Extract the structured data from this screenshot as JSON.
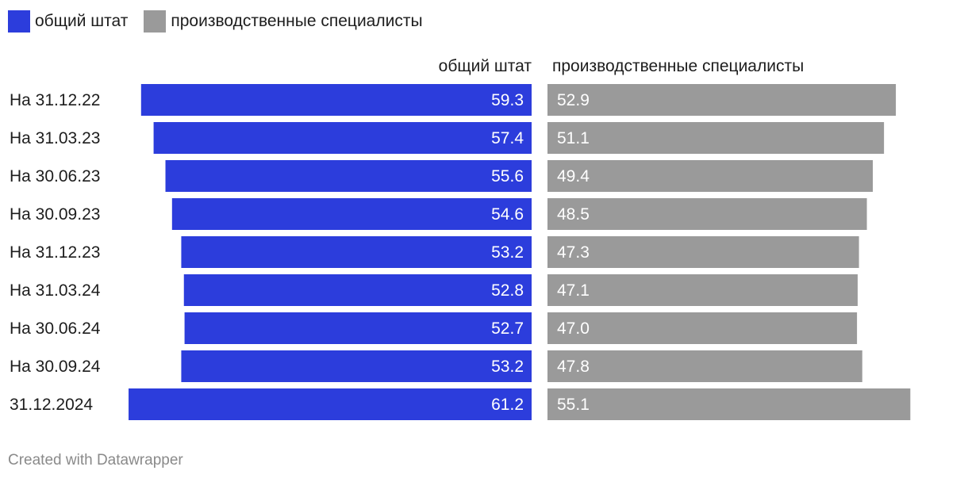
{
  "legend": [
    {
      "label": "общий штат",
      "color": "#2c3ddc"
    },
    {
      "label": "производственные специалисты",
      "color": "#9a9a9a"
    }
  ],
  "chart_data": {
    "type": "bar",
    "orientation": "horizontal",
    "layout": "split-columns",
    "categories": [
      "На 31.12.22",
      "На 31.03.23",
      "На 30.06.23",
      "На 30.09.23",
      "На 31.12.23",
      "На 31.03.24",
      "На 30.06.24",
      "На 30.09.24",
      "31.12.2024"
    ],
    "series": [
      {
        "name": "общий штат",
        "color": "#2c3ddc",
        "values": [
          59.3,
          57.4,
          55.6,
          54.6,
          53.2,
          52.8,
          52.7,
          53.2,
          61.2
        ]
      },
      {
        "name": "производственные специалисты",
        "color": "#9a9a9a",
        "values": [
          52.9,
          51.1,
          49.4,
          48.5,
          47.3,
          47.1,
          47.0,
          47.8,
          55.1
        ]
      }
    ],
    "value_labels": [
      [
        "59.3",
        "57.4",
        "55.6",
        "54.6",
        "53.2",
        "52.8",
        "52.7",
        "53.2",
        "61.2"
      ],
      [
        "52.9",
        "51.1",
        "49.4",
        "48.5",
        "47.3",
        "47.1",
        "47.0",
        "47.8",
        "55.1"
      ]
    ],
    "column_headers": [
      "общий штат",
      "производственные специалисты"
    ],
    "legend_position": "top-left",
    "grid": false
  },
  "footer": "Created with Datawrapper"
}
